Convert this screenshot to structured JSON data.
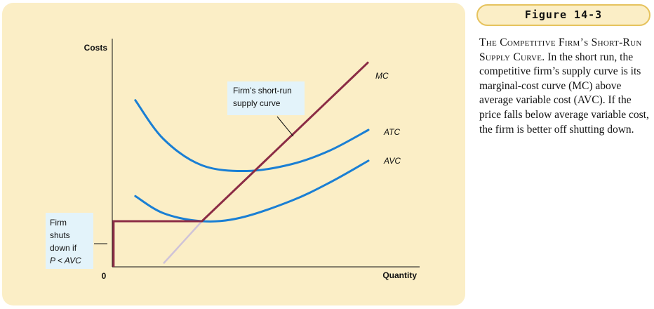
{
  "figure": {
    "label": "Figure 14-3",
    "caption_title": "The Competitive Firm’s Short-Run Supply Curve.",
    "caption_body": "In the short run, the competitive firm’s supply curve is its marginal-cost curve (MC) above average variable cost (AVC). If the price falls below average variable cost, the firm is better off shutting down."
  },
  "chart_data": {
    "type": "line",
    "ylabel": "Costs",
    "xlabel": "Quantity",
    "origin_label": "0",
    "xlim": [
      0,
      10
    ],
    "ylim": [
      0,
      10
    ],
    "grid": false,
    "series": [
      {
        "name": "MC",
        "color": "#8b2c45",
        "x": [
          4.0,
          10.0
        ],
        "y": [
          1.9,
          8.97
        ]
      },
      {
        "name": "ATC",
        "color": "#1a7fd4",
        "x": [
          0.9,
          2.0,
          3.5,
          5.25,
          7.0,
          8.5,
          10.0
        ],
        "y": [
          7.3,
          5.6,
          4.45,
          4.2,
          4.5,
          5.1,
          6.0
        ]
      },
      {
        "name": "AVC",
        "color": "#1a7fd4",
        "x": [
          0.9,
          2.0,
          3.5,
          5.0,
          7.0,
          8.5,
          10.0
        ],
        "y": [
          3.1,
          2.35,
          2.0,
          2.15,
          2.9,
          3.7,
          4.65
        ]
      }
    ],
    "mc_below_avc": {
      "color": "#cfc3d8",
      "x": [
        2.0,
        3.5
      ],
      "y": [
        0.15,
        2.0
      ]
    },
    "supply_curve": {
      "color": "#8b2c45",
      "x": [
        0.05,
        0.05,
        3.5,
        10.0
      ],
      "y": [
        0.0,
        2.0,
        2.0,
        8.97
      ]
    },
    "annotations": {
      "supply_note": [
        "Firm’s short-run",
        "supply curve"
      ],
      "shutdown_note": [
        "Firm",
        "shuts",
        "down if",
        "P < AVC"
      ]
    }
  }
}
